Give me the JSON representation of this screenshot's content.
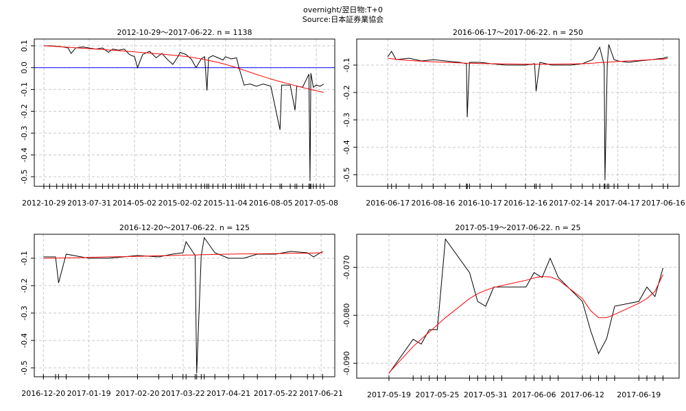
{
  "title": "overnight/翌日物:T+0",
  "source": "Source:日本証券業協会",
  "chart_data": [
    {
      "type": "line",
      "title": "2012-10-29～2017-06-22. n = 1138",
      "x": [
        "2012-10-29",
        "2012-12-03",
        "2013-01-15",
        "2013-02-20",
        "2013-03-25",
        "2013-04-12",
        "2013-05-10",
        "2013-06-20",
        "2013-07-31",
        "2013-09-10",
        "2013-10-20",
        "2013-11-25",
        "2013-12-20",
        "2014-01-25",
        "2014-03-01",
        "2014-04-01",
        "2014-05-02",
        "2014-05-20",
        "2014-06-20",
        "2014-08-01",
        "2014-09-10",
        "2014-10-15",
        "2014-11-20",
        "2014-12-20",
        "2015-01-20",
        "2015-02-02",
        "2015-03-10",
        "2015-04-10",
        "2015-05-10",
        "2015-06-10",
        "2015-07-01",
        "2015-07-15",
        "2015-07-25",
        "2015-08-20",
        "2015-09-20",
        "2015-10-20",
        "2015-11-04",
        "2015-12-10",
        "2016-01-10",
        "2016-01-25",
        "2016-02-10",
        "2016-02-25",
        "2016-04-01",
        "2016-05-10",
        "2016-06-20",
        "2016-08-05",
        "2016-09-30",
        "2016-10-10",
        "2016-12-01",
        "2016-12-30",
        "2017-01-10",
        "2017-02-14",
        "2017-03-24",
        "2017-03-31",
        "2017-04-05",
        "2017-04-20",
        "2017-05-08",
        "2017-06-01",
        "2017-06-22"
      ],
      "series": [
        {
          "color": "#000000",
          "values": [
            0.1,
            0.1,
            0.098,
            0.095,
            0.09,
            0.065,
            0.09,
            0.095,
            0.09,
            0.085,
            0.09,
            0.07,
            0.085,
            0.08,
            0.085,
            0.06,
            0.05,
            0,
            0.06,
            0.075,
            0.045,
            0.065,
            0.035,
            0.015,
            0.05,
            0.07,
            0.06,
            0.04,
            0,
            0.04,
            0.05,
            -0.105,
            0.045,
            0.055,
            0.045,
            0.035,
            0.05,
            0.04,
            0.045,
            0,
            -0.04,
            -0.08,
            -0.075,
            -0.085,
            -0.075,
            -0.085,
            -0.285,
            -0.08,
            -0.08,
            -0.195,
            -0.085,
            -0.09,
            -0.03,
            -0.52,
            -0.025,
            -0.09,
            -0.08,
            -0.085,
            -0.075
          ]
        },
        {
          "color": "#ff0000",
          "values": [
            0.1,
            0.099,
            0.097,
            0.095,
            0.093,
            0.092,
            0.091,
            0.089,
            0.087,
            0.085,
            0.083,
            0.081,
            0.08,
            0.078,
            0.076,
            0.074,
            0.072,
            0.071,
            0.069,
            0.067,
            0.064,
            0.062,
            0.059,
            0.057,
            0.055,
            0.054,
            0.051,
            0.048,
            0.044,
            0.04,
            0.037,
            0.035,
            0.033,
            0.029,
            0.024,
            0.018,
            0.015,
            0.007,
            0,
            -0.004,
            -0.008,
            -0.012,
            -0.021,
            -0.031,
            -0.041,
            -0.052,
            -0.064,
            -0.066,
            -0.076,
            -0.082,
            -0.084,
            -0.091,
            -0.098,
            -0.099,
            -0.1,
            -0.103,
            -0.106,
            -0.11,
            -0.113
          ]
        }
      ],
      "xlim": [
        "2012-09-01",
        "2017-08-28"
      ],
      "xticks": [
        "2012-10-29",
        "2013-07-31",
        "2014-05-02",
        "2015-02-02",
        "2015-11-04",
        "2016-08-05",
        "2017-05-08"
      ],
      "ylim": [
        -0.544,
        0.131
      ],
      "yticks": [
        0.1,
        {
          "value": 0,
          "label": "0.0"
        },
        -0.1,
        -0.2,
        -0.3,
        -0.4,
        -0.5
      ],
      "hline": 0,
      "hline_color": "#0000ff",
      "grid": true
    },
    {
      "type": "line",
      "title": "2016-06-17～2017-06-22. n = 250",
      "x": [
        "2016-06-17",
        "2016-06-22",
        "2016-06-28",
        "2016-07-15",
        "2016-08-01",
        "2016-08-16",
        "2016-09-01",
        "2016-09-20",
        "2016-09-29",
        "2016-09-30",
        "2016-10-03",
        "2016-10-17",
        "2016-11-01",
        "2016-11-20",
        "2016-12-16",
        "2016-12-28",
        "2016-12-30",
        "2017-01-04",
        "2017-01-20",
        "2017-02-14",
        "2017-03-01",
        "2017-03-15",
        "2017-03-24",
        "2017-03-30",
        "2017-03-31",
        "2017-04-03",
        "2017-04-05",
        "2017-04-12",
        "2017-04-17",
        "2017-05-01",
        "2017-05-15",
        "2017-06-01",
        "2017-06-16",
        "2017-06-22"
      ],
      "series": [
        {
          "color": "#000000",
          "values": [
            -0.07,
            -0.05,
            -0.08,
            -0.075,
            -0.085,
            -0.08,
            -0.085,
            -0.09,
            -0.095,
            -0.29,
            -0.09,
            -0.09,
            -0.095,
            -0.1,
            -0.1,
            -0.095,
            -0.195,
            -0.09,
            -0.1,
            -0.1,
            -0.095,
            -0.08,
            -0.035,
            -0.1,
            -0.52,
            -0.1,
            -0.025,
            -0.08,
            -0.085,
            -0.09,
            -0.085,
            -0.08,
            -0.075,
            -0.07
          ]
        },
        {
          "color": "#ff0000",
          "values": [
            -0.075,
            -0.077,
            -0.079,
            -0.083,
            -0.086,
            -0.088,
            -0.09,
            -0.092,
            -0.093,
            -0.093,
            -0.093,
            -0.094,
            -0.095,
            -0.096,
            -0.097,
            -0.097,
            -0.097,
            -0.097,
            -0.097,
            -0.096,
            -0.095,
            -0.093,
            -0.091,
            -0.09,
            -0.09,
            -0.09,
            -0.089,
            -0.088,
            -0.087,
            -0.085,
            -0.083,
            -0.08,
            -0.078,
            -0.076
          ]
        }
      ],
      "xlim": [
        "2016-05-07",
        "2017-07-07"
      ],
      "xticks": [
        "2016-06-17",
        "2016-08-16",
        "2016-10-17",
        "2016-12-16",
        "2017-02-14",
        "2017-04-17",
        "2017-06-16"
      ],
      "ylim": [
        -0.5425,
        -0.005
      ],
      "yticks": [
        -0.1,
        -0.2,
        -0.3,
        -0.4,
        -0.5
      ],
      "grid": true
    },
    {
      "type": "line",
      "title": "2016-12-20～2017-06-22. n = 125",
      "x": [
        "2016-12-20",
        "2016-12-28",
        "2016-12-30",
        "2017-01-04",
        "2017-01-19",
        "2017-02-01",
        "2017-02-20",
        "2017-03-06",
        "2017-03-15",
        "2017-03-22",
        "2017-03-24",
        "2017-03-30",
        "2017-03-31",
        "2017-04-03",
        "2017-04-05",
        "2017-04-12",
        "2017-04-21",
        "2017-05-01",
        "2017-05-10",
        "2017-05-22",
        "2017-06-01",
        "2017-06-12",
        "2017-06-16",
        "2017-06-22"
      ],
      "series": [
        {
          "color": "#000000",
          "values": [
            -0.095,
            -0.095,
            -0.19,
            -0.085,
            -0.1,
            -0.1,
            -0.09,
            -0.095,
            -0.085,
            -0.08,
            -0.04,
            -0.09,
            -0.52,
            -0.09,
            -0.025,
            -0.08,
            -0.1,
            -0.1,
            -0.085,
            -0.085,
            -0.075,
            -0.08,
            -0.095,
            -0.075
          ]
        },
        {
          "color": "#ff0000",
          "values": [
            -0.1,
            -0.1,
            -0.099,
            -0.099,
            -0.097,
            -0.095,
            -0.093,
            -0.091,
            -0.09,
            -0.089,
            -0.088,
            -0.088,
            -0.088,
            -0.087,
            -0.087,
            -0.086,
            -0.085,
            -0.084,
            -0.084,
            -0.083,
            -0.082,
            -0.082,
            -0.081,
            -0.08
          ]
        }
      ],
      "xlim": [
        "2016-12-14",
        "2017-06-30"
      ],
      "xticks": [
        "2016-12-20",
        "2017-01-19",
        "2017-02-20",
        "2017-03-22",
        "2017-04-21",
        "2017-05-22",
        "2017-06-21"
      ],
      "ylim": [
        -0.5325,
        -0.0125
      ],
      "yticks": [
        -0.1,
        -0.2,
        -0.3,
        -0.4,
        -0.5
      ],
      "grid": true
    },
    {
      "type": "line",
      "title": "2017-05-19～2017-06-22. n = 25",
      "x": [
        "2017-05-19",
        "2017-05-22",
        "2017-05-23",
        "2017-05-24",
        "2017-05-25",
        "2017-05-26",
        "2017-05-29",
        "2017-05-30",
        "2017-05-31",
        "2017-06-01",
        "2017-06-02",
        "2017-06-05",
        "2017-06-06",
        "2017-06-07",
        "2017-06-08",
        "2017-06-09",
        "2017-06-12",
        "2017-06-13",
        "2017-06-14",
        "2017-06-15",
        "2017-06-16",
        "2017-06-19",
        "2017-06-20",
        "2017-06-21",
        "2017-06-22"
      ],
      "series": [
        {
          "color": "#000000",
          "values": [
            -0.0921,
            -0.085,
            -0.086,
            -0.083,
            -0.083,
            -0.0641,
            -0.0711,
            -0.0771,
            -0.0781,
            -0.0741,
            -0.0741,
            -0.0741,
            -0.0711,
            -0.0721,
            -0.0681,
            -0.0721,
            -0.0771,
            -0.0831,
            -0.088,
            -0.0849,
            -0.0781,
            -0.0771,
            -0.0741,
            -0.0761,
            -0.0701
          ]
        },
        {
          "color": "#ff0000",
          "values": [
            -0.092,
            -0.0865,
            -0.085,
            -0.0835,
            -0.082,
            -0.0805,
            -0.0765,
            -0.0755,
            -0.0748,
            -0.0742,
            -0.0738,
            -0.0727,
            -0.0722,
            -0.0719,
            -0.072,
            -0.0726,
            -0.0765,
            -0.079,
            -0.0805,
            -0.0805,
            -0.0798,
            -0.0775,
            -0.0765,
            -0.075,
            -0.0715
          ]
        }
      ],
      "xlim": [
        "2017-05-15",
        "2017-06-24"
      ],
      "xticks": [
        "2017-05-19",
        "2017-05-25",
        "2017-05-31",
        "2017-06-06",
        "2017-06-12",
        "2017-06-19"
      ],
      "ylim": [
        -0.0931,
        -0.0631
      ],
      "yticks": [
        {
          "value": -0.07,
          "label": "-0.070"
        },
        {
          "value": -0.08,
          "label": "-0.080"
        },
        {
          "value": -0.09,
          "label": "-0.090"
        }
      ],
      "grid": true
    }
  ]
}
